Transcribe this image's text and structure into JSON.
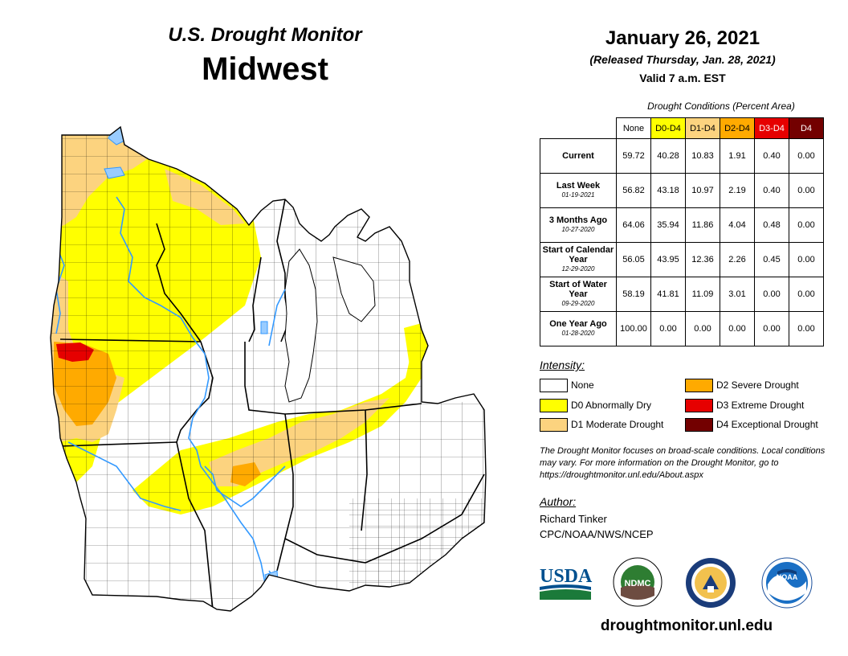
{
  "header": {
    "title": "U.S. Drought Monitor",
    "region": "Midwest"
  },
  "release": {
    "date": "January 26, 2021",
    "released": "(Released Thursday, Jan. 28, 2021)",
    "valid": "Valid 7 a.m. EST"
  },
  "conditions": {
    "title": "Drought Conditions (Percent Area)",
    "columns": [
      "None",
      "D0-D4",
      "D1-D4",
      "D2-D4",
      "D3-D4",
      "D4"
    ],
    "rows": [
      {
        "label": "Current",
        "date": "",
        "values": [
          "59.72",
          "40.28",
          "10.83",
          "1.91",
          "0.40",
          "0.00"
        ]
      },
      {
        "label": "Last Week",
        "date": "01-19-2021",
        "values": [
          "56.82",
          "43.18",
          "10.97",
          "2.19",
          "0.40",
          "0.00"
        ]
      },
      {
        "label": "3 Months Ago",
        "date": "10-27-2020",
        "values": [
          "64.06",
          "35.94",
          "11.86",
          "4.04",
          "0.48",
          "0.00"
        ]
      },
      {
        "label": "Start of Calendar Year",
        "date": "12-29-2020",
        "values": [
          "56.05",
          "43.95",
          "12.36",
          "2.26",
          "0.45",
          "0.00"
        ]
      },
      {
        "label": "Start of Water Year",
        "date": "09-29-2020",
        "values": [
          "58.19",
          "41.81",
          "11.09",
          "3.01",
          "0.00",
          "0.00"
        ]
      },
      {
        "label": "One Year Ago",
        "date": "01-28-2020",
        "values": [
          "100.00",
          "0.00",
          "0.00",
          "0.00",
          "0.00",
          "0.00"
        ]
      }
    ]
  },
  "legend": {
    "title": "Intensity:",
    "items": [
      {
        "label": "None",
        "color": "#ffffff"
      },
      {
        "label": "D0 Abnormally Dry",
        "color": "#ffff00"
      },
      {
        "label": "D1 Moderate Drought",
        "color": "#fcd37f"
      },
      {
        "label": "D2 Severe Drought",
        "color": "#ffaa00"
      },
      {
        "label": "D3 Extreme Drought",
        "color": "#e60000"
      },
      {
        "label": "D4 Exceptional Drought",
        "color": "#730000"
      }
    ]
  },
  "note": "The Drought Monitor focuses on broad-scale conditions. Local conditions may vary. For more information on the Drought Monitor, go to https://droughtmonitor.unl.edu/About.aspx",
  "author": {
    "title": "Author:",
    "name": "Richard Tinker",
    "org": "CPC/NOAA/NWS/NCEP"
  },
  "logos": {
    "usda": "USDA",
    "ndmc": "NDMC",
    "noaa": "NOAA"
  },
  "url": "droughtmonitor.unl.edu",
  "colors": {
    "none": "#ffffff",
    "d0": "#ffff00",
    "d1": "#fcd37f",
    "d2": "#ffaa00",
    "d3": "#e60000",
    "d4": "#730000",
    "water": "#99ccff",
    "river": "#3399ff"
  }
}
